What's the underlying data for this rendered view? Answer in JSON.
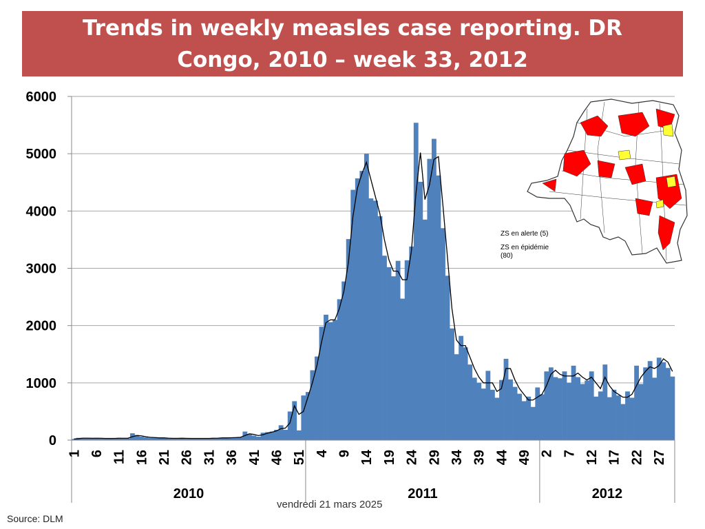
{
  "slide": {
    "title": "Trends in weekly measles case reporting. DR Congo, 2010 – week 33, 2012",
    "date": "vendredi 21 mars 2025",
    "source": "Source: DLM"
  },
  "map_legend": {
    "alert": "ZS en alerte (5)",
    "epidemic_line1": "ZS en épidémie",
    "epidemic_line2": "(80)",
    "colors": {
      "alert": "#ffff33",
      "epidemic": "#ff0000",
      "other": "#ffffff",
      "border": "#333333"
    }
  },
  "chart_data": {
    "type": "bar",
    "title": "",
    "xlabel": "",
    "ylabel": "",
    "ylim": [
      0,
      6000
    ],
    "yticks": [
      0,
      1000,
      2000,
      3000,
      4000,
      5000,
      6000
    ],
    "grid": true,
    "colors": {
      "bar": "#4f81bd",
      "trend": "#000000",
      "grid": "#a6a6a6"
    },
    "years": [
      {
        "label": "2010",
        "weeks": 52
      },
      {
        "label": "2011",
        "weeks": 52
      },
      {
        "label": "2012",
        "weeks": 30
      }
    ],
    "x_tick_labels": {
      "2010": [
        "1",
        "6",
        "11",
        "16",
        "21",
        "26",
        "31",
        "36",
        "41",
        "46",
        "51"
      ],
      "2011": [
        "4",
        "9",
        "14",
        "19",
        "24",
        "29",
        "34",
        "39",
        "44",
        "49"
      ],
      "2012": [
        "2",
        "7",
        "12",
        "17",
        "22",
        "27"
      ]
    },
    "series": [
      {
        "type": "bar",
        "values": [
          20,
          40,
          40,
          30,
          30,
          40,
          30,
          30,
          30,
          30,
          40,
          30,
          30,
          120,
          90,
          60,
          50,
          40,
          40,
          40,
          40,
          30,
          30,
          30,
          40,
          30,
          30,
          30,
          30,
          30,
          30,
          40,
          40,
          40,
          40,
          40,
          50,
          50,
          150,
          100,
          80,
          60,
          130,
          140,
          150,
          180,
          260,
          180,
          500,
          680,
          170,
          780,
          840,
          1220,
          1460,
          1980,
          2190,
          2060,
          2100,
          2460,
          2770,
          3510,
          4370,
          4570,
          4700,
          5000,
          4220,
          4180,
          3910,
          3220,
          3020,
          2860,
          3130,
          2470,
          3140,
          3380,
          5540,
          4510,
          3850,
          4910,
          5260,
          4620,
          3700,
          2870,
          1950,
          1500,
          1820,
          1620,
          1320,
          1090,
          1000,
          900,
          1210,
          880,
          740,
          1050,
          1420,
          1060,
          930,
          810,
          680,
          760,
          580,
          920,
          800,
          1200,
          1270,
          1100,
          1080,
          1200,
          1000,
          1300,
          1100,
          980,
          1040,
          1200,
          760,
          850,
          1320,
          750,
          880,
          780,
          630,
          850,
          740,
          1300,
          980,
          1270,
          1380,
          1090,
          1440,
          1360,
          1260,
          1110
        ]
      },
      {
        "type": "line",
        "values": [
          20,
          25,
          35,
          35,
          33,
          33,
          33,
          30,
          30,
          30,
          33,
          33,
          33,
          60,
          80,
          75,
          60,
          50,
          45,
          40,
          40,
          35,
          32,
          32,
          33,
          32,
          30,
          30,
          30,
          30,
          30,
          33,
          35,
          40,
          40,
          42,
          45,
          50,
          80,
          110,
          100,
          80,
          95,
          120,
          140,
          160,
          200,
          210,
          300,
          600,
          450,
          500,
          750,
          1000,
          1300,
          1700,
          2050,
          2100,
          2100,
          2300,
          2600,
          3100,
          3900,
          4400,
          4650,
          4850,
          4550,
          4250,
          3950,
          3500,
          3150,
          2950,
          2950,
          2800,
          2800,
          3300,
          4300,
          5020,
          4200,
          4450,
          4900,
          4950,
          4100,
          3200,
          2300,
          1750,
          1650,
          1650,
          1450,
          1250,
          1100,
          1000,
          1000,
          1000,
          850,
          900,
          1250,
          1250,
          1050,
          900,
          800,
          700,
          700,
          750,
          800,
          950,
          1150,
          1220,
          1150,
          1120,
          1120,
          1120,
          1170,
          1100,
          1050,
          1100,
          1000,
          900,
          1100,
          950,
          850,
          800,
          750,
          750,
          800,
          950,
          1100,
          1200,
          1280,
          1250,
          1300,
          1420,
          1360,
          1200
        ]
      }
    ]
  }
}
